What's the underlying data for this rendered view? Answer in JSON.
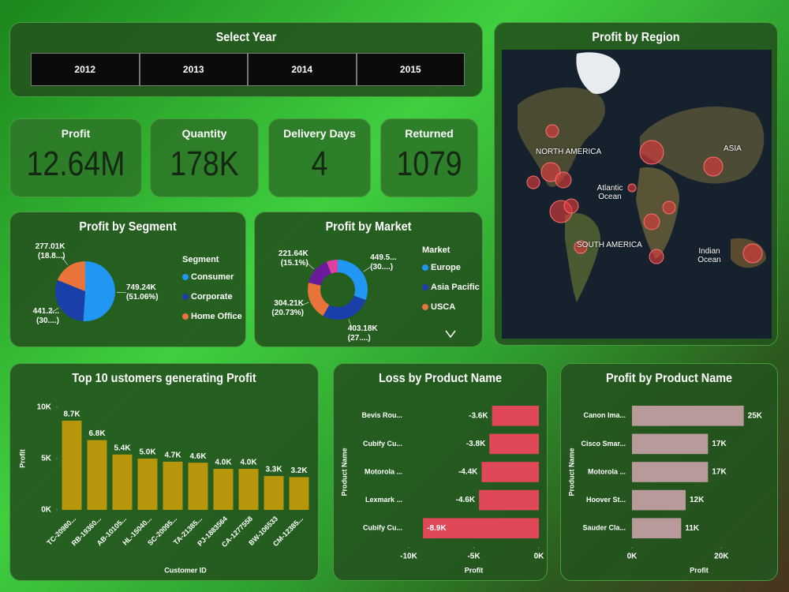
{
  "slicer": {
    "title": "Select Year",
    "options": [
      "2012",
      "2013",
      "2014",
      "2015"
    ]
  },
  "kpis": [
    {
      "label": "Profit",
      "value": "12.64M"
    },
    {
      "label": "Quantity",
      "value": "178K"
    },
    {
      "label": "Delivery Days",
      "value": "4"
    },
    {
      "label": "Returned",
      "value": "1079"
    }
  ],
  "map": {
    "title": "Profit by Region",
    "labels": [
      "NORTH AMERICA",
      "ASIA",
      "Atlantic Ocean",
      "SOUTH AMERICA",
      "Indian Ocean"
    ]
  },
  "chart_data": [
    {
      "type": "pie",
      "title": "Profit by Segment",
      "legend_title": "Segment",
      "categories": [
        "Consumer",
        "Corporate",
        "Home Office"
      ],
      "values": [
        749.24,
        441.2,
        277.01
      ],
      "value_labels": [
        "749.24K (51.06%)",
        "441.2... (30....)",
        "277.01K (18.8...)"
      ],
      "colors": [
        "#2196f3",
        "#1a3fa8",
        "#e8743b"
      ]
    },
    {
      "type": "donut",
      "title": "Profit by Market",
      "legend_title": "Market",
      "categories": [
        "Europe",
        "Asia Pacific",
        "USCA",
        null,
        null
      ],
      "values": [
        449.5,
        403.18,
        304.21,
        221.64,
        89
      ],
      "value_labels": [
        "449.5... (30....)",
        "403.18K (27....)",
        "304.21K (20.73%)",
        "221.64K (15.1%)",
        null
      ],
      "colors": [
        "#2196f3",
        "#1a3fa8",
        "#e8743b",
        "#6a1b9a",
        "#e040a0"
      ]
    },
    {
      "type": "bar",
      "title": "Top 10 ustomers generating Profit",
      "y_label": "Profit",
      "x_label": "Customer ID",
      "categories": [
        "TC-20980...",
        "RB-19360...",
        "AB-10105...",
        "HL-15040...",
        "SC-20095...",
        "TA-21385...",
        "PJ-1883564",
        "CA-1277558",
        "BW-106533",
        "CM-12385..."
      ],
      "values": [
        8700,
        6800,
        5400,
        5000,
        4700,
        4600,
        4000,
        4000,
        3300,
        3200
      ],
      "value_labels": [
        "8.7K",
        "6.8K",
        "5.4K",
        "5.0K",
        "4.7K",
        "4.6K",
        "4.0K",
        "4.0K",
        "3.3K",
        "3.2K"
      ],
      "color": "#b8960c",
      "ylim": [
        0,
        10000
      ],
      "yticks": [
        {
          "value": 0,
          "label": "0K"
        },
        {
          "value": 5000,
          "label": "5K"
        },
        {
          "value": 10000,
          "label": "10K"
        }
      ]
    },
    {
      "type": "bar",
      "horizontal": true,
      "title": "Loss by Product Name",
      "y_label": "Product Name",
      "x_label": "Profit",
      "categories": [
        "Bevis Rou...",
        "Cubify Cu...",
        "Motorola ...",
        "Lexmark ...",
        "Cubify Cu..."
      ],
      "values": [
        -3600,
        -3800,
        -4400,
        -4600,
        -8900
      ],
      "value_labels": [
        "-3.6K",
        "-3.8K",
        "-4.4K",
        "-4.6K",
        "-8.9K"
      ],
      "color": "#e0485a",
      "xlim": [
        -10000,
        0
      ],
      "xticks": [
        {
          "value": -10000,
          "label": "-10K"
        },
        {
          "value": -5000,
          "label": "-5K"
        },
        {
          "value": 0,
          "label": "0K"
        }
      ]
    },
    {
      "type": "bar",
      "horizontal": true,
      "title": "Profit by Product Name",
      "y_label": "Product Name",
      "x_label": "Profit",
      "categories": [
        "Canon Ima...",
        "Cisco Smar...",
        "Motorola ...",
        "Hoover St...",
        "Sauder Cla..."
      ],
      "values": [
        25000,
        17000,
        17000,
        12000,
        11000
      ],
      "value_labels": [
        "25K",
        "17K",
        "17K",
        "12K",
        "11K"
      ],
      "color": "#b89a9a",
      "xlim": [
        0,
        30000
      ],
      "xticks": [
        {
          "value": 0,
          "label": "0K"
        },
        {
          "value": 20000,
          "label": "20K"
        }
      ]
    }
  ]
}
